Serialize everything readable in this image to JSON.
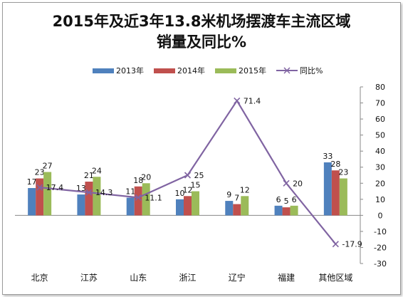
{
  "chart_data": {
    "type": "bar",
    "title_line1": "2015年及近3年13.8米机场摆渡车主流区域",
    "title_line2": "销量及同比%",
    "categories": [
      "北京",
      "江苏",
      "山东",
      "浙江",
      "辽宁",
      "福建",
      "其他区域"
    ],
    "series": [
      {
        "name": "2013年",
        "type": "bar",
        "color": "#4f81bd",
        "values": [
          17,
          13,
          11,
          10,
          9,
          6,
          33
        ]
      },
      {
        "name": "2014年",
        "type": "bar",
        "color": "#c0504d",
        "values": [
          23,
          21,
          18,
          12,
          7,
          5,
          28
        ]
      },
      {
        "name": "2015年",
        "type": "bar",
        "color": "#9bbb59",
        "values": [
          27,
          24,
          20,
          15,
          12,
          6,
          23
        ]
      },
      {
        "name": "同比%",
        "type": "line",
        "axis": "right",
        "color": "#8064a2",
        "values": [
          17.4,
          14.3,
          11.1,
          25,
          71.4,
          20,
          -17.9
        ]
      }
    ],
    "bar_axis_range": [
      -30,
      80
    ],
    "right_axis": {
      "min": -30,
      "max": 80,
      "step": 10,
      "ticks": [
        "-30",
        "-20",
        "-10",
        "0",
        "10",
        "20",
        "30",
        "40",
        "50",
        "60",
        "70",
        "80"
      ]
    },
    "legend_position": "top",
    "grid": false
  }
}
